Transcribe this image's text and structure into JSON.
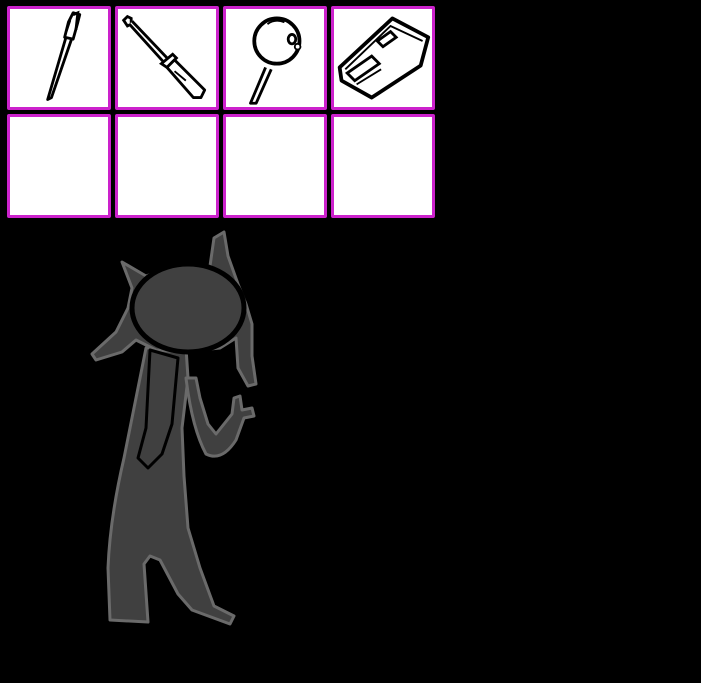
{
  "inventory": {
    "slots": [
      {
        "item": "pen-icon"
      },
      {
        "item": "screwdriver-icon"
      },
      {
        "item": "lollipop-icon"
      },
      {
        "item": "card-icon"
      },
      {
        "item": ""
      },
      {
        "item": ""
      },
      {
        "item": ""
      },
      {
        "item": ""
      }
    ]
  },
  "colors": {
    "background": "#000000",
    "slot_border": "#cc22cc",
    "slot_fill": "#ffffff",
    "character_fill": "#404040",
    "character_outline": "#6a6a6a"
  }
}
